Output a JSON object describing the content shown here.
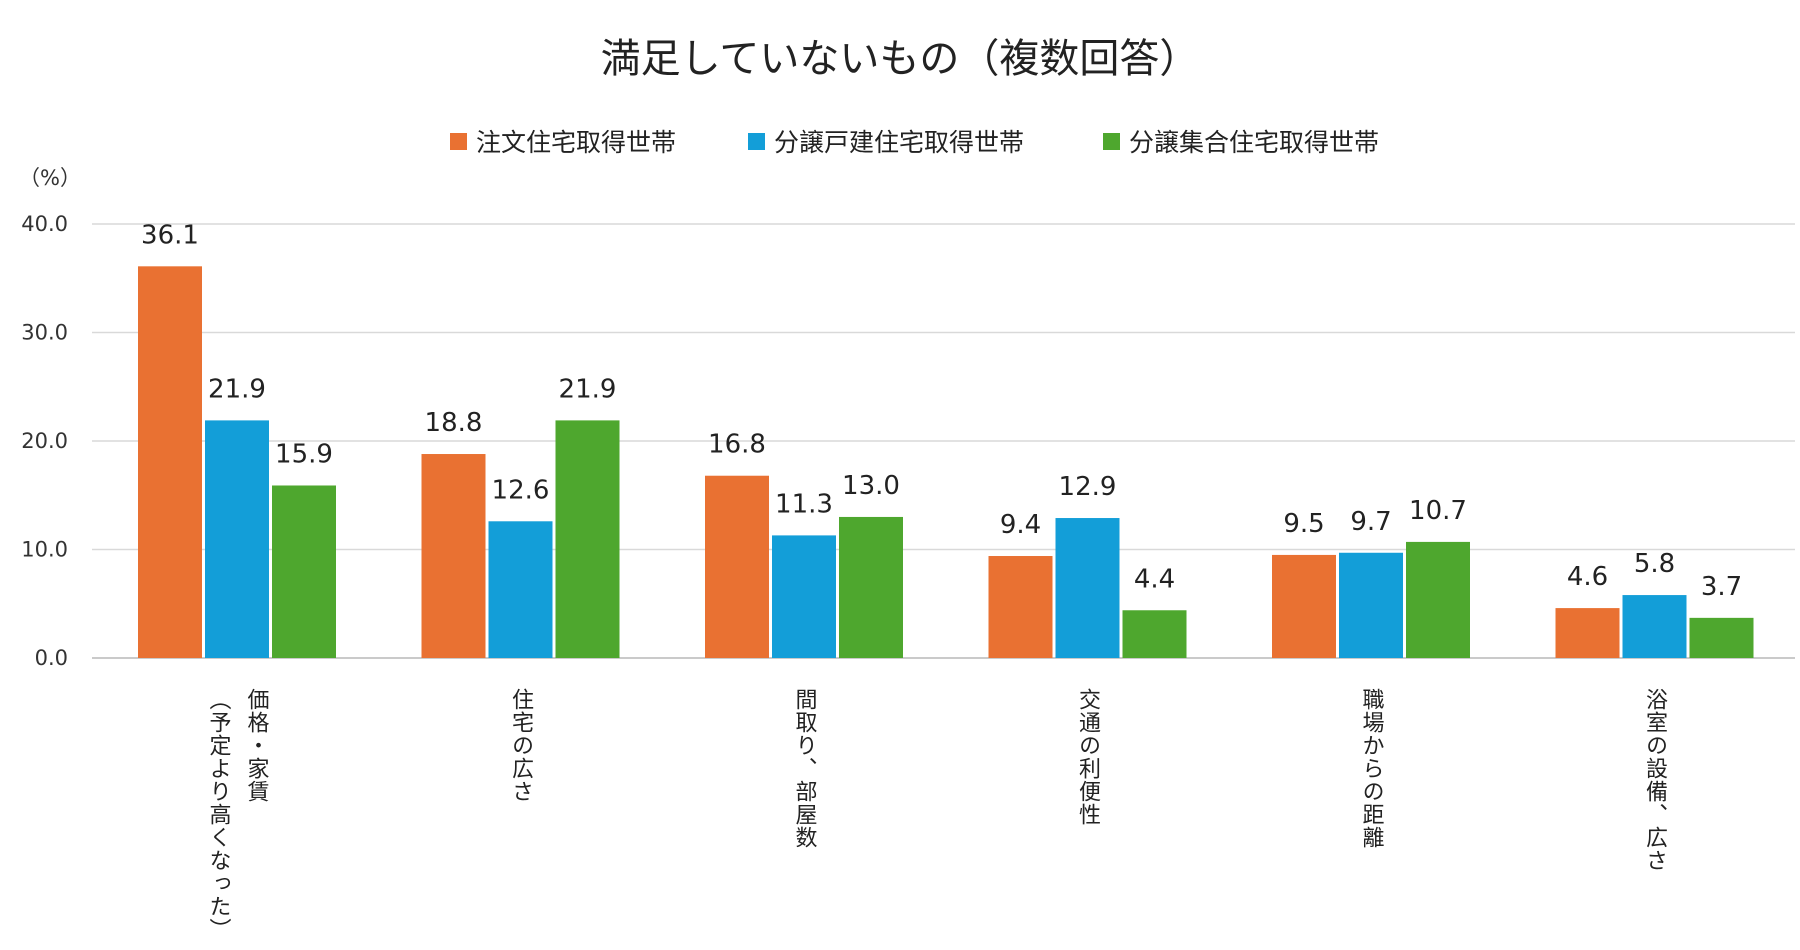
{
  "chart_data": {
    "type": "bar",
    "title": "満足していないもの（複数回答）",
    "ylabel": "（%）",
    "ylim": [
      0,
      40
    ],
    "yticks": [
      "0.0",
      "10.0",
      "20.0",
      "30.0",
      "40.0"
    ],
    "grid": true,
    "legend_position": "top",
    "categories": [
      [
        "価格・家賃",
        "（予定より高くなった）"
      ],
      [
        "住宅の広さ"
      ],
      [
        "間取り、部屋数"
      ],
      [
        "交通の利便性"
      ],
      [
        "職場からの距離"
      ],
      [
        "浴室の設備、広さ"
      ]
    ],
    "series": [
      {
        "name": "注文住宅取得世帯",
        "color": "#E97132",
        "values": [
          36.1,
          18.8,
          16.8,
          9.4,
          9.5,
          4.6
        ]
      },
      {
        "name": "分譲戸建住宅取得世帯",
        "color": "#139ED8",
        "values": [
          21.9,
          12.6,
          11.3,
          12.9,
          9.7,
          5.8
        ]
      },
      {
        "name": "分譲集合住宅取得世帯",
        "color": "#4EA72E",
        "values": [
          15.9,
          21.9,
          13.0,
          4.4,
          10.7,
          3.7
        ]
      }
    ]
  }
}
